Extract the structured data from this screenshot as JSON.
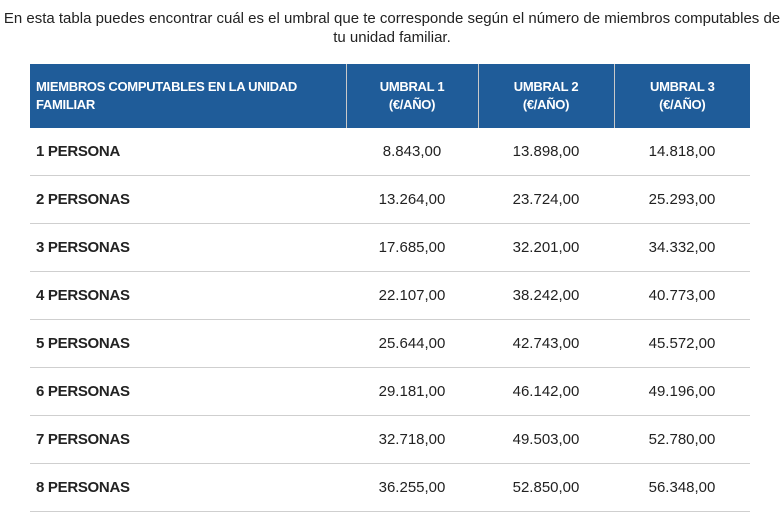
{
  "intro": "En esta tabla puedes encontrar cuál es el umbral que te corresponde según el número de miembros computables de tu unidad familiar.",
  "colors": {
    "header_bg": "#1f5c99",
    "row_border": "#cfcfcf"
  },
  "table": {
    "headers": [
      "MIEMBROS COMPUTABLES EN LA UNIDAD FAMILIAR",
      "UMBRAL 1 (€/AÑO)",
      "UMBRAL 2 (€/AÑO)",
      "UMBRAL 3 (€/AÑO)"
    ],
    "rows": [
      [
        "1 PERSONA",
        "8.843,00",
        "13.898,00",
        "14.818,00"
      ],
      [
        "2 PERSONAS",
        "13.264,00",
        "23.724,00",
        "25.293,00"
      ],
      [
        "3 PERSONAS",
        "17.685,00",
        "32.201,00",
        "34.332,00"
      ],
      [
        "4 PERSONAS",
        "22.107,00",
        "38.242,00",
        "40.773,00"
      ],
      [
        "5 PERSONAS",
        "25.644,00",
        "42.743,00",
        "45.572,00"
      ],
      [
        "6 PERSONAS",
        "29.181,00",
        "46.142,00",
        "49.196,00"
      ],
      [
        "7 PERSONAS",
        "32.718,00",
        "49.503,00",
        "52.780,00"
      ],
      [
        "8 PERSONAS",
        "36.255,00",
        "52.850,00",
        "56.348,00"
      ]
    ]
  }
}
